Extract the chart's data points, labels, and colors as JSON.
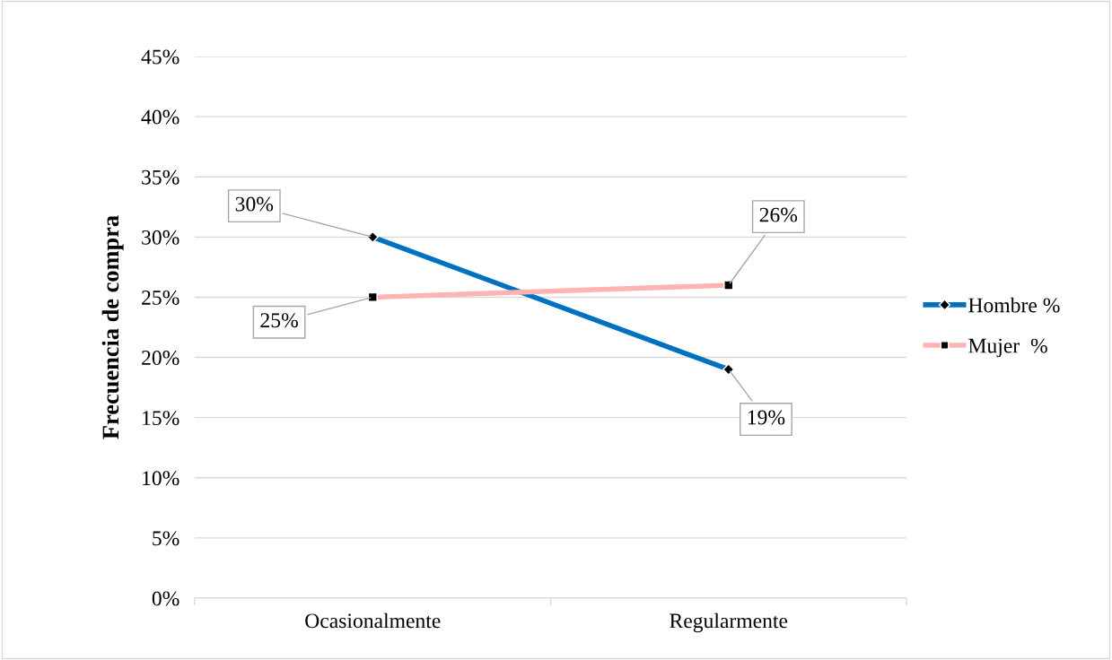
{
  "chart_data": {
    "type": "line",
    "ylabel": "Frecuencia de compra",
    "categories": [
      "Ocasionalmente",
      "Regularmente"
    ],
    "series": [
      {
        "name": "Hombre %",
        "color": "#0070c0",
        "values": [
          30,
          19
        ],
        "marker": "diamond",
        "value_labels": [
          "30%",
          "19%"
        ]
      },
      {
        "name": "Mujer  %",
        "color": "#ffb3b3",
        "values": [
          25,
          26
        ],
        "marker": "square",
        "value_labels": [
          "25%",
          "26%"
        ]
      }
    ],
    "ylim": [
      0,
      45
    ],
    "yticks": [
      {
        "value": 0,
        "label": "0%"
      },
      {
        "value": 5,
        "label": "5%"
      },
      {
        "value": 10,
        "label": "10%"
      },
      {
        "value": 15,
        "label": "15%"
      },
      {
        "value": 20,
        "label": "20%"
      },
      {
        "value": 25,
        "label": "25%"
      },
      {
        "value": 30,
        "label": "30%"
      },
      {
        "value": 35,
        "label": "35%"
      },
      {
        "value": 40,
        "label": "40%"
      },
      {
        "value": 45,
        "label": "45%"
      }
    ],
    "grid": "y",
    "legend": "right",
    "line_style": "solid"
  }
}
